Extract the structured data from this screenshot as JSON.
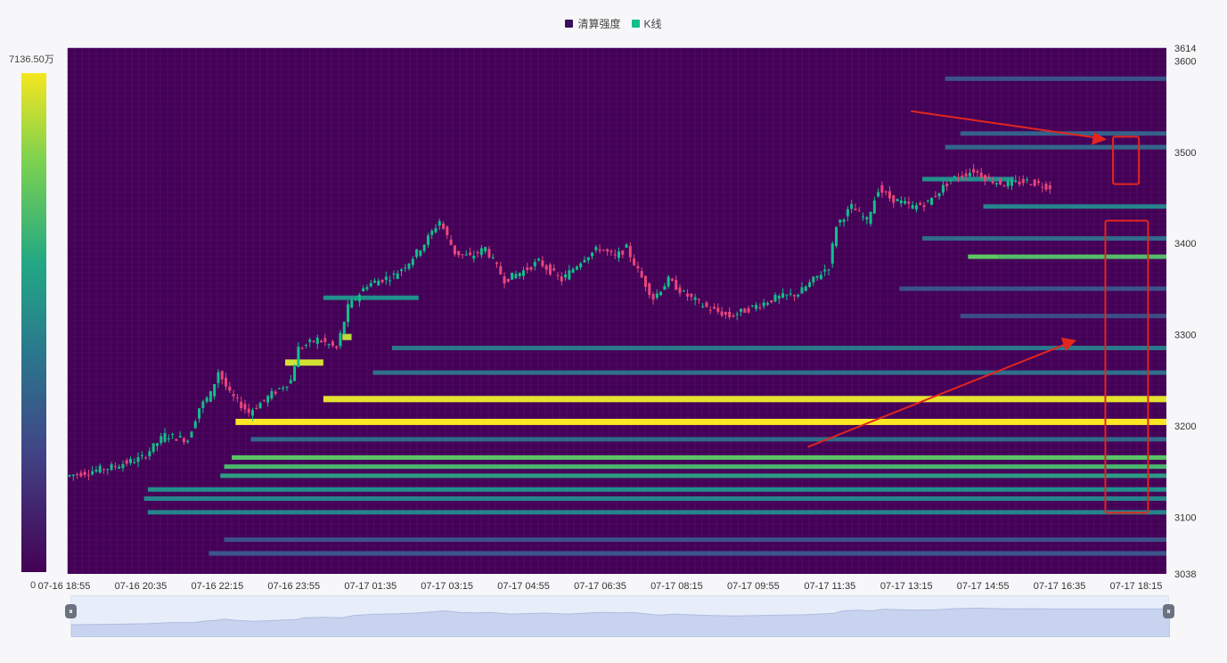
{
  "legend": [
    {
      "label": "清算强度",
      "color": "#3b0f5c"
    },
    {
      "label": "K线",
      "color": "#12c08a"
    }
  ],
  "colorbar": {
    "max_label": "7136.50万",
    "min_label": "0"
  },
  "colors": {
    "heat_bg": "#440154",
    "heat_low": "#3b528b",
    "heat_mid": "#21918c",
    "heat_high": "#5ec962",
    "heat_max": "#fde725",
    "candle_up": "#12c08a",
    "candle_down": "#e8467a",
    "annotation": "#e3261d"
  },
  "chart_data": {
    "type": "heatmap",
    "title": "",
    "ylim": [
      3038,
      3614
    ],
    "y_ticks": [
      3614,
      3600,
      3500,
      3400,
      3300,
      3200,
      3100,
      3038
    ],
    "x_ticks": [
      "07-16 18:55",
      "07-16 20:35",
      "07-16 22:15",
      "07-16 23:55",
      "07-17 01:35",
      "07-17 03:15",
      "07-17 04:55",
      "07-17 06:35",
      "07-17 08:15",
      "07-17 09:55",
      "07-17 11:35",
      "07-17 13:15",
      "07-17 14:55",
      "07-17 16:35",
      "07-17 18:15"
    ],
    "x_range": [
      0,
      1440
    ],
    "price_path": [
      [
        0,
        3145
      ],
      [
        60,
        3155
      ],
      [
        100,
        3165
      ],
      [
        130,
        3190
      ],
      [
        160,
        3185
      ],
      [
        175,
        3220
      ],
      [
        190,
        3235
      ],
      [
        200,
        3260
      ],
      [
        215,
        3235
      ],
      [
        240,
        3215
      ],
      [
        270,
        3235
      ],
      [
        295,
        3250
      ],
      [
        305,
        3285
      ],
      [
        330,
        3295
      ],
      [
        355,
        3285
      ],
      [
        370,
        3330
      ],
      [
        395,
        3355
      ],
      [
        430,
        3365
      ],
      [
        450,
        3380
      ],
      [
        470,
        3400
      ],
      [
        490,
        3425
      ],
      [
        510,
        3390
      ],
      [
        530,
        3385
      ],
      [
        550,
        3395
      ],
      [
        575,
        3360
      ],
      [
        600,
        3370
      ],
      [
        620,
        3380
      ],
      [
        650,
        3360
      ],
      [
        680,
        3385
      ],
      [
        700,
        3395
      ],
      [
        720,
        3385
      ],
      [
        735,
        3395
      ],
      [
        750,
        3370
      ],
      [
        770,
        3340
      ],
      [
        790,
        3360
      ],
      [
        810,
        3345
      ],
      [
        840,
        3330
      ],
      [
        870,
        3320
      ],
      [
        900,
        3330
      ],
      [
        930,
        3340
      ],
      [
        960,
        3345
      ],
      [
        980,
        3360
      ],
      [
        1000,
        3375
      ],
      [
        1010,
        3420
      ],
      [
        1030,
        3440
      ],
      [
        1050,
        3425
      ],
      [
        1065,
        3460
      ],
      [
        1080,
        3450
      ],
      [
        1110,
        3440
      ],
      [
        1130,
        3445
      ],
      [
        1160,
        3470
      ],
      [
        1190,
        3480
      ],
      [
        1210,
        3470
      ],
      [
        1230,
        3465
      ],
      [
        1260,
        3468
      ],
      [
        1290,
        3462
      ]
    ],
    "liquidation_bands": [
      {
        "price": 3205,
        "x_start": 220,
        "x_end": 1440,
        "intensity": 1.0
      },
      {
        "price": 3230,
        "x_start": 335,
        "x_end": 1440,
        "intensity": 0.97
      },
      {
        "price": 3270,
        "x_start": 285,
        "x_end": 335,
        "intensity": 0.95
      },
      {
        "price": 3298,
        "x_start": 360,
        "x_end": 372,
        "intensity": 0.92
      },
      {
        "price": 3165,
        "x_start": 215,
        "x_end": 1440,
        "intensity": 0.78
      },
      {
        "price": 3155,
        "x_start": 205,
        "x_end": 1440,
        "intensity": 0.72
      },
      {
        "price": 3145,
        "x_start": 200,
        "x_end": 1440,
        "intensity": 0.6
      },
      {
        "price": 3130,
        "x_start": 105,
        "x_end": 1440,
        "intensity": 0.55
      },
      {
        "price": 3120,
        "x_start": 100,
        "x_end": 1440,
        "intensity": 0.5
      },
      {
        "price": 3105,
        "x_start": 105,
        "x_end": 1440,
        "intensity": 0.5
      },
      {
        "price": 3185,
        "x_start": 240,
        "x_end": 1440,
        "intensity": 0.4
      },
      {
        "price": 3258,
        "x_start": 400,
        "x_end": 1440,
        "intensity": 0.42
      },
      {
        "price": 3285,
        "x_start": 425,
        "x_end": 1440,
        "intensity": 0.45
      },
      {
        "price": 3340,
        "x_start": 335,
        "x_end": 460,
        "intensity": 0.55
      },
      {
        "price": 3385,
        "x_start": 1220,
        "x_end": 1440,
        "intensity": 0.75
      },
      {
        "price": 3385,
        "x_start": 1180,
        "x_end": 1220,
        "intensity": 0.8
      },
      {
        "price": 3440,
        "x_start": 1200,
        "x_end": 1440,
        "intensity": 0.5
      },
      {
        "price": 3405,
        "x_start": 1120,
        "x_end": 1440,
        "intensity": 0.4
      },
      {
        "price": 3470,
        "x_start": 1120,
        "x_end": 1240,
        "intensity": 0.55
      },
      {
        "price": 3505,
        "x_start": 1150,
        "x_end": 1440,
        "intensity": 0.38
      },
      {
        "price": 3520,
        "x_start": 1170,
        "x_end": 1440,
        "intensity": 0.36
      },
      {
        "price": 3580,
        "x_start": 1150,
        "x_end": 1440,
        "intensity": 0.3
      },
      {
        "price": 3060,
        "x_start": 185,
        "x_end": 1440,
        "intensity": 0.32
      },
      {
        "price": 3075,
        "x_start": 205,
        "x_end": 1440,
        "intensity": 0.3
      },
      {
        "price": 3350,
        "x_start": 1090,
        "x_end": 1440,
        "intensity": 0.3
      },
      {
        "price": 3320,
        "x_start": 1170,
        "x_end": 1440,
        "intensity": 0.28
      }
    ]
  }
}
